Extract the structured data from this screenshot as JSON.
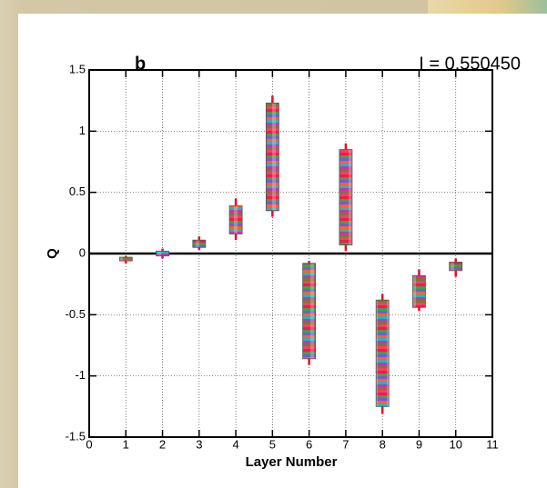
{
  "chart_data": {
    "type": "range",
    "panel_label": "b",
    "annotation": "I = 0.550450",
    "x_label": "Layer Number",
    "y_label": "Q",
    "x": [
      1,
      2,
      3,
      4,
      5,
      6,
      7,
      8,
      9,
      10
    ],
    "box_low": [
      -0.06,
      -0.02,
      0.05,
      0.16,
      0.35,
      -0.86,
      0.07,
      -1.25,
      -0.44,
      -0.14
    ],
    "box_high": [
      -0.03,
      0.02,
      0.11,
      0.39,
      1.23,
      -0.08,
      0.85,
      -0.38,
      -0.18,
      -0.07
    ],
    "whisker_low": [
      -0.08,
      -0.04,
      0.03,
      0.11,
      0.3,
      -0.91,
      0.02,
      -1.31,
      -0.47,
      -0.19
    ],
    "whisker_high": [
      -0.02,
      0.04,
      0.14,
      0.45,
      1.29,
      -0.06,
      0.9,
      -0.33,
      -0.13,
      -0.04
    ],
    "stripe_colors": [
      "#e8204a",
      "#2fa84f",
      "#8a4fd8",
      "#f06a1e",
      "#1fb5c9",
      "#d62fa0",
      "#7a7a2a",
      "#ff3b6b"
    ],
    "whisker_color": "#e0102a",
    "xlim": [
      0,
      11
    ],
    "xticks": [
      0,
      1,
      2,
      3,
      4,
      5,
      6,
      7,
      8,
      9,
      10,
      11
    ],
    "ylim": [
      -1.5,
      1.5
    ],
    "yticks": [
      -1.5,
      -1,
      -0.5,
      0,
      0.5,
      1,
      1.5
    ],
    "grid": true,
    "zero_line": true
  }
}
